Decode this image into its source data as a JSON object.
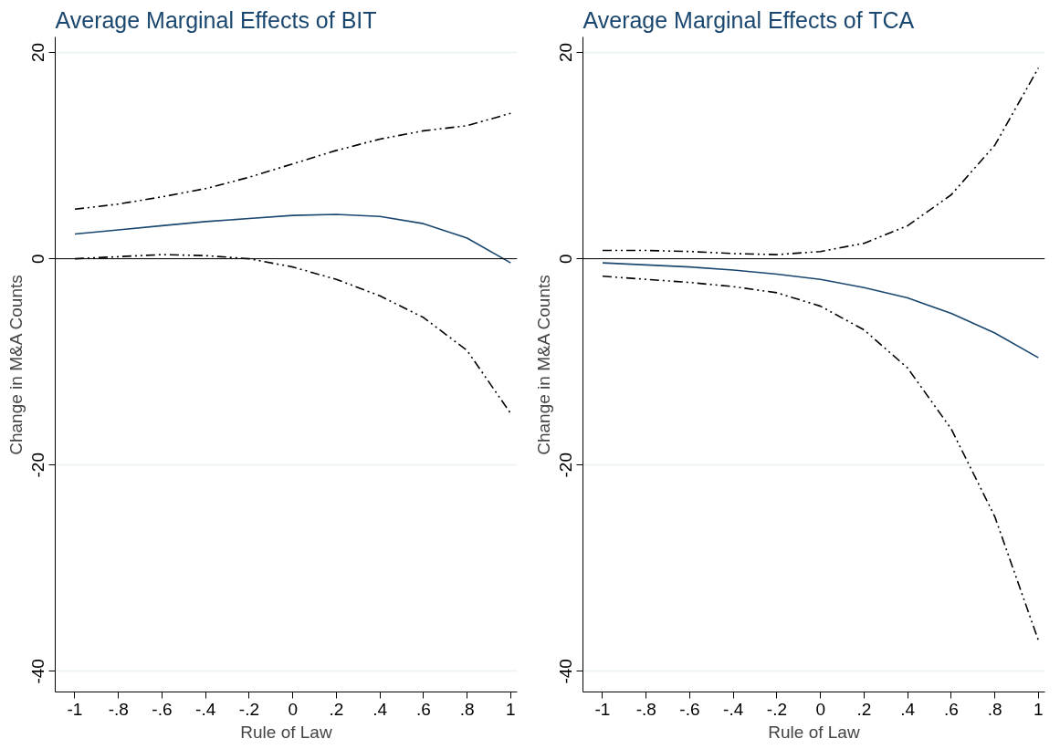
{
  "chart_data": [
    {
      "type": "line",
      "title": "Average Marginal Effects of BIT",
      "xlabel": "Rule of Law",
      "ylabel": "Change in M&A Counts",
      "x": [
        -1,
        -0.8,
        -0.6,
        -0.4,
        -0.2,
        0,
        0.2,
        0.4,
        0.6,
        0.8,
        1
      ],
      "xlim": [
        -1.09,
        1.03
      ],
      "ylim": [
        -42,
        21.5
      ],
      "xticks": [
        {
          "value": -1,
          "label": "-1"
        },
        {
          "value": -0.8,
          "label": "-.8"
        },
        {
          "value": -0.6,
          "label": "-.6"
        },
        {
          "value": -0.4,
          "label": "-.4"
        },
        {
          "value": -0.2,
          "label": "-.2"
        },
        0,
        {
          "value": 0.2,
          "label": ".2"
        },
        {
          "value": 0.4,
          "label": ".4"
        },
        {
          "value": 0.6,
          "label": ".6"
        },
        {
          "value": 0.8,
          "label": ".8"
        },
        1
      ],
      "yticks": [
        -40,
        -20,
        0,
        20
      ],
      "grid": "y",
      "marker": "none",
      "ref_lines": [
        {
          "axis": "y",
          "value": 0,
          "color": "#000000"
        }
      ],
      "series": [
        {
          "color": "#1a476f",
          "line_style": "solid",
          "values": [
            2.4,
            2.8,
            3.2,
            3.6,
            3.9,
            4.2,
            4.3,
            4.1,
            3.4,
            2.0,
            -0.4
          ]
        },
        {
          "color": "#000000",
          "line_style": "dashed",
          "values": [
            4.8,
            5.3,
            6.0,
            6.8,
            7.9,
            9.2,
            10.5,
            11.6,
            12.4,
            12.9,
            14.1
          ]
        },
        {
          "color": "#000000",
          "line_style": "dashed",
          "values": [
            0.0,
            0.2,
            0.4,
            0.3,
            0.0,
            -0.8,
            -2.0,
            -3.6,
            -5.7,
            -8.9,
            -15.0
          ]
        }
      ]
    },
    {
      "type": "line",
      "title": "Average Marginal Effects of TCA",
      "xlabel": "Rule of Law",
      "ylabel": "Change in M&A Counts",
      "x": [
        -1,
        -0.8,
        -0.6,
        -0.4,
        -0.2,
        0,
        0.2,
        0.4,
        0.6,
        0.8,
        1
      ],
      "xlim": [
        -1.09,
        1.03
      ],
      "ylim": [
        -42,
        21.5
      ],
      "xticks": [
        {
          "value": -1,
          "label": "-1"
        },
        {
          "value": -0.8,
          "label": "-.8"
        },
        {
          "value": -0.6,
          "label": "-.6"
        },
        {
          "value": -0.4,
          "label": "-.4"
        },
        {
          "value": -0.2,
          "label": "-.2"
        },
        0,
        {
          "value": 0.2,
          "label": ".2"
        },
        {
          "value": 0.4,
          "label": ".4"
        },
        {
          "value": 0.6,
          "label": ".6"
        },
        {
          "value": 0.8,
          "label": ".8"
        },
        1
      ],
      "yticks": [
        -40,
        -20,
        0,
        20
      ],
      "grid": "y",
      "marker": "none",
      "ref_lines": [
        {
          "axis": "y",
          "value": 0,
          "color": "#000000"
        }
      ],
      "series": [
        {
          "color": "#1a476f",
          "line_style": "solid",
          "values": [
            -0.4,
            -0.6,
            -0.8,
            -1.1,
            -1.5,
            -2.0,
            -2.8,
            -3.8,
            -5.3,
            -7.2,
            -9.6
          ]
        },
        {
          "color": "#000000",
          "line_style": "dashed",
          "values": [
            0.8,
            0.8,
            0.7,
            0.5,
            0.4,
            0.7,
            1.5,
            3.2,
            6.2,
            11.0,
            18.5
          ]
        },
        {
          "color": "#000000",
          "line_style": "dashed",
          "values": [
            -1.7,
            -2.0,
            -2.3,
            -2.7,
            -3.3,
            -4.6,
            -6.9,
            -10.6,
            -16.5,
            -25.0,
            -37.0
          ]
        }
      ]
    }
  ]
}
